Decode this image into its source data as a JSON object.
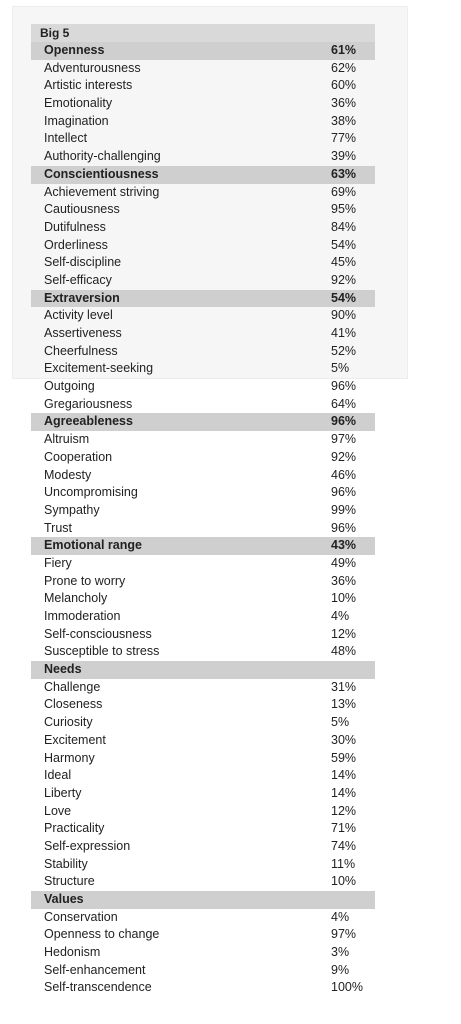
{
  "title": "Big 5",
  "sections": [
    {
      "name": "Openness",
      "value": "61%",
      "items": [
        {
          "name": "Adventurousness",
          "value": "62%"
        },
        {
          "name": "Artistic interests",
          "value": "60%"
        },
        {
          "name": "Emotionality",
          "value": "36%"
        },
        {
          "name": "Imagination",
          "value": "38%"
        },
        {
          "name": "Intellect",
          "value": "77%"
        },
        {
          "name": "Authority-challenging",
          "value": "39%"
        }
      ]
    },
    {
      "name": "Conscientiousness",
      "value": "63%",
      "items": [
        {
          "name": "Achievement striving",
          "value": "69%"
        },
        {
          "name": "Cautiousness",
          "value": "95%"
        },
        {
          "name": "Dutifulness",
          "value": "84%"
        },
        {
          "name": "Orderliness",
          "value": "54%"
        },
        {
          "name": "Self-discipline",
          "value": "45%"
        },
        {
          "name": "Self-efficacy",
          "value": "92%"
        }
      ]
    },
    {
      "name": "Extraversion",
      "value": "54%",
      "items": [
        {
          "name": "Activity level",
          "value": "90%"
        },
        {
          "name": "Assertiveness",
          "value": "41%"
        },
        {
          "name": "Cheerfulness",
          "value": "52%"
        },
        {
          "name": "Excitement-seeking",
          "value": "5%"
        },
        {
          "name": "Outgoing",
          "value": "96%"
        },
        {
          "name": "Gregariousness",
          "value": "64%"
        }
      ]
    },
    {
      "name": "Agreeableness",
      "value": "96%",
      "items": [
        {
          "name": "Altruism",
          "value": "97%"
        },
        {
          "name": "Cooperation",
          "value": "92%"
        },
        {
          "name": "Modesty",
          "value": "46%"
        },
        {
          "name": "Uncompromising",
          "value": "96%"
        },
        {
          "name": "Sympathy",
          "value": "99%"
        },
        {
          "name": "Trust",
          "value": "96%"
        }
      ]
    },
    {
      "name": "Emotional range",
      "value": "43%",
      "items": [
        {
          "name": "Fiery",
          "value": "49%"
        },
        {
          "name": "Prone to worry",
          "value": "36%"
        },
        {
          "name": "Melancholy",
          "value": "10%"
        },
        {
          "name": "Immoderation",
          "value": "4%"
        },
        {
          "name": "Self-consciousness",
          "value": "12%"
        },
        {
          "name": "Susceptible to stress",
          "value": "48%"
        }
      ]
    },
    {
      "name": "Needs",
      "value": "",
      "items": [
        {
          "name": "Challenge",
          "value": "31%"
        },
        {
          "name": "Closeness",
          "value": "13%"
        },
        {
          "name": "Curiosity",
          "value": "5%"
        },
        {
          "name": "Excitement",
          "value": "30%"
        },
        {
          "name": "Harmony",
          "value": "59%"
        },
        {
          "name": "Ideal",
          "value": "14%"
        },
        {
          "name": "Liberty",
          "value": "14%"
        },
        {
          "name": "Love",
          "value": "12%"
        },
        {
          "name": "Practicality",
          "value": "71%"
        },
        {
          "name": "Self-expression",
          "value": "74%"
        },
        {
          "name": "Stability",
          "value": "11%"
        },
        {
          "name": "Structure",
          "value": "10%"
        }
      ]
    },
    {
      "name": "Values",
      "value": "",
      "items": [
        {
          "name": "Conservation",
          "value": "4%"
        },
        {
          "name": "Openness to change",
          "value": "97%"
        },
        {
          "name": "Hedonism",
          "value": "3%"
        },
        {
          "name": "Self-enhancement",
          "value": "9%"
        },
        {
          "name": "Self-transcendence",
          "value": "100%"
        }
      ]
    }
  ]
}
